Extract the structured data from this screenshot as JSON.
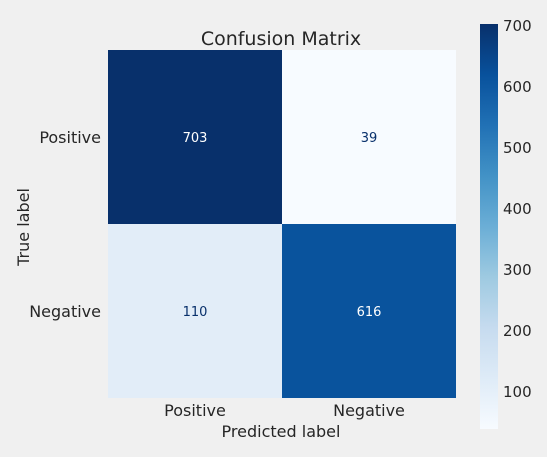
{
  "chart_data": {
    "type": "heatmap",
    "title": "Confusion Matrix",
    "xlabel": "Predicted label",
    "ylabel": "True label",
    "x_categories": [
      "Positive",
      "Negative"
    ],
    "y_categories": [
      "Positive",
      "Negative"
    ],
    "values": [
      [
        703,
        39
      ],
      [
        110,
        616
      ]
    ],
    "colorbar": {
      "colormap": "Blues",
      "range": [
        39,
        703
      ],
      "ticks": [
        100,
        200,
        300,
        400,
        500,
        600,
        700
      ]
    },
    "grid": false,
    "colors": {
      "low": "#f7fbff",
      "high": "#08306b",
      "text_on_dark": "#ffffff",
      "text_on_light": "#08306b"
    }
  }
}
